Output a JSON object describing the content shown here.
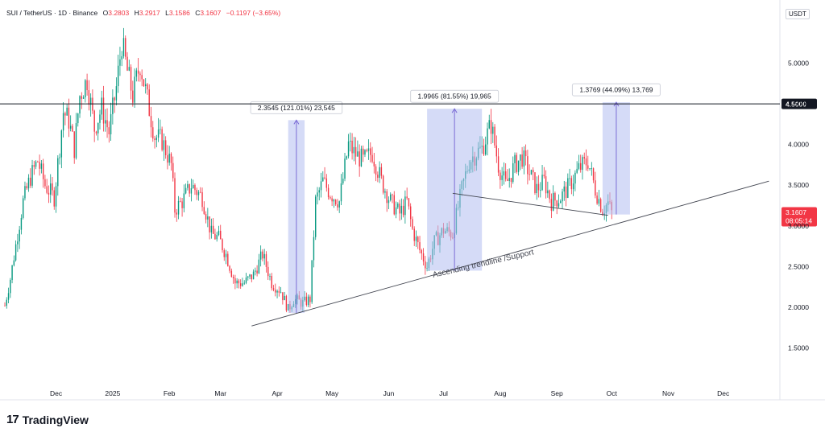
{
  "header": {
    "symbol": "SUI / TetherUS · 1D · Binance",
    "open_label": "O",
    "open": "3.2803",
    "high_label": "H",
    "high": "3.2917",
    "low_label": "L",
    "low": "3.1586",
    "close_label": "C",
    "close": "3.1607",
    "change": "−0.1197 (−3.65%)"
  },
  "currency": "USDT",
  "footer": {
    "brand": "TradingView",
    "logo_mark": "17"
  },
  "colors": {
    "up": "#089981",
    "down": "#f23645",
    "range": "#b2bdf0",
    "range_line": "#7b6cd6",
    "last_price_bg": "#f23645"
  },
  "chart_data": {
    "type": "candlestick",
    "title": "",
    "y_ticks": [
      "1.5000",
      "2.0000",
      "2.5000",
      "3.0000",
      "3.5000",
      "4.0000",
      "4.5000",
      "5.0000"
    ],
    "x_ticks": [
      {
        "label": "Dec",
        "date": "2024-12-01"
      },
      {
        "label": "2025",
        "date": "2025-01-01"
      },
      {
        "label": "Feb",
        "date": "2025-02-01"
      },
      {
        "label": "Mar",
        "date": "2025-03-01"
      },
      {
        "label": "Apr",
        "date": "2025-04-01"
      },
      {
        "label": "May",
        "date": "2025-05-01"
      },
      {
        "label": "Jun",
        "date": "2025-06-01"
      },
      {
        "label": "Jul",
        "date": "2025-07-01"
      },
      {
        "label": "Aug",
        "date": "2025-08-01"
      },
      {
        "label": "Sep",
        "date": "2025-09-01"
      },
      {
        "label": "Oct",
        "date": "2025-10-01"
      },
      {
        "label": "Nov",
        "date": "2025-11-01"
      },
      {
        "label": "Dec",
        "date": "2025-12-01"
      }
    ],
    "ylim": [
      1.05,
      5.5
    ],
    "xlim": [
      "2024-11-03",
      "2026-01-01"
    ],
    "horizontal_line": {
      "value": 4.5,
      "label": "4.5000"
    },
    "last_price": {
      "value": 3.1607,
      "label": "3.1607",
      "countdown": "08:05:14"
    },
    "price_path": [
      [
        "2024-11-03",
        2.02
      ],
      [
        "2024-11-06",
        2.35
      ],
      [
        "2024-11-10",
        2.9
      ],
      [
        "2024-11-13",
        3.3
      ],
      [
        "2024-11-17",
        3.6
      ],
      [
        "2024-11-21",
        3.8
      ],
      [
        "2024-11-25",
        3.5
      ],
      [
        "2024-11-30",
        3.35
      ],
      [
        "2024-12-05",
        4.4
      ],
      [
        "2024-12-08",
        4.3
      ],
      [
        "2024-12-11",
        3.95
      ],
      [
        "2024-12-14",
        4.6
      ],
      [
        "2024-12-18",
        4.8
      ],
      [
        "2024-12-22",
        4.2
      ],
      [
        "2024-12-26",
        4.45
      ],
      [
        "2024-12-30",
        4.15
      ],
      [
        "2025-01-03",
        4.7
      ],
      [
        "2025-01-06",
        5.25
      ],
      [
        "2025-01-09",
        4.9
      ],
      [
        "2025-01-12",
        4.6
      ],
      [
        "2025-01-16",
        5.0
      ],
      [
        "2025-01-20",
        4.55
      ],
      [
        "2025-01-24",
        4.1
      ],
      [
        "2025-01-28",
        4.05
      ],
      [
        "2025-02-02",
        3.75
      ],
      [
        "2025-02-04",
        3.2
      ],
      [
        "2025-02-08",
        3.3
      ],
      [
        "2025-02-13",
        3.5
      ],
      [
        "2025-02-19",
        3.35
      ],
      [
        "2025-02-24",
        2.9
      ],
      [
        "2025-02-28",
        2.85
      ],
      [
        "2025-03-04",
        2.65
      ],
      [
        "2025-03-09",
        2.3
      ],
      [
        "2025-03-14",
        2.3
      ],
      [
        "2025-03-19",
        2.4
      ],
      [
        "2025-03-24",
        2.65
      ],
      [
        "2025-03-29",
        2.3
      ],
      [
        "2025-04-03",
        2.2
      ],
      [
        "2025-04-07",
        1.97
      ],
      [
        "2025-04-10",
        2.1
      ],
      [
        "2025-04-15",
        2.05
      ],
      [
        "2025-04-19",
        2.1
      ],
      [
        "2025-04-22",
        3.3
      ],
      [
        "2025-04-26",
        3.55
      ],
      [
        "2025-04-30",
        3.4
      ],
      [
        "2025-05-05",
        3.3
      ],
      [
        "2025-05-10",
        4.0
      ],
      [
        "2025-05-13",
        3.9
      ],
      [
        "2025-05-18",
        3.8
      ],
      [
        "2025-05-23",
        3.9
      ],
      [
        "2025-05-28",
        3.55
      ],
      [
        "2025-06-02",
        3.3
      ],
      [
        "2025-06-07",
        3.15
      ],
      [
        "2025-06-11",
        3.3
      ],
      [
        "2025-06-14",
        2.95
      ],
      [
        "2025-06-18",
        2.7
      ],
      [
        "2025-06-22",
        2.5
      ],
      [
        "2025-06-26",
        2.8
      ],
      [
        "2025-07-01",
        2.95
      ],
      [
        "2025-07-06",
        2.9
      ],
      [
        "2025-07-11",
        3.45
      ],
      [
        "2025-07-15",
        3.8
      ],
      [
        "2025-07-19",
        3.9
      ],
      [
        "2025-07-22",
        3.95
      ],
      [
        "2025-07-27",
        4.25
      ],
      [
        "2025-07-31",
        3.75
      ],
      [
        "2025-08-04",
        3.5
      ],
      [
        "2025-08-09",
        3.75
      ],
      [
        "2025-08-13",
        3.85
      ],
      [
        "2025-08-17",
        3.65
      ],
      [
        "2025-08-21",
        3.45
      ],
      [
        "2025-08-25",
        3.55
      ],
      [
        "2025-08-29",
        3.3
      ],
      [
        "2025-09-03",
        3.35
      ],
      [
        "2025-09-08",
        3.5
      ],
      [
        "2025-09-13",
        3.7
      ],
      [
        "2025-09-18",
        3.8
      ],
      [
        "2025-09-22",
        3.45
      ],
      [
        "2025-09-26",
        3.2
      ],
      [
        "2025-09-29",
        3.28
      ],
      [
        "2025-10-01",
        3.16
      ]
    ],
    "ranges": [
      {
        "label": "2.3545 (121.01%) 23,545",
        "start": "2025-04-07",
        "end": "2025-04-16",
        "low": 1.93,
        "high": 4.3
      },
      {
        "label": "1.9965 (81.55%) 19,965",
        "start": "2025-06-22",
        "end": "2025-07-22",
        "low": 2.45,
        "high": 4.44
      },
      {
        "label": "1.3769 (44.09%) 13,769",
        "start": "2025-09-26",
        "end": "2025-10-11",
        "low": 3.14,
        "high": 4.52
      }
    ],
    "trendlines": [
      {
        "name": "ascending",
        "start": [
          "2025-03-18",
          1.77
        ],
        "end": [
          "2025-12-26",
          3.55
        ]
      },
      {
        "name": "descending",
        "start": [
          "2025-07-06",
          3.4
        ],
        "end": [
          "2025-09-29",
          3.13
        ]
      }
    ],
    "annotation": {
      "text": "Ascending trendline /Support",
      "date": "2025-06-24",
      "value": 2.5,
      "angle": -13
    }
  }
}
